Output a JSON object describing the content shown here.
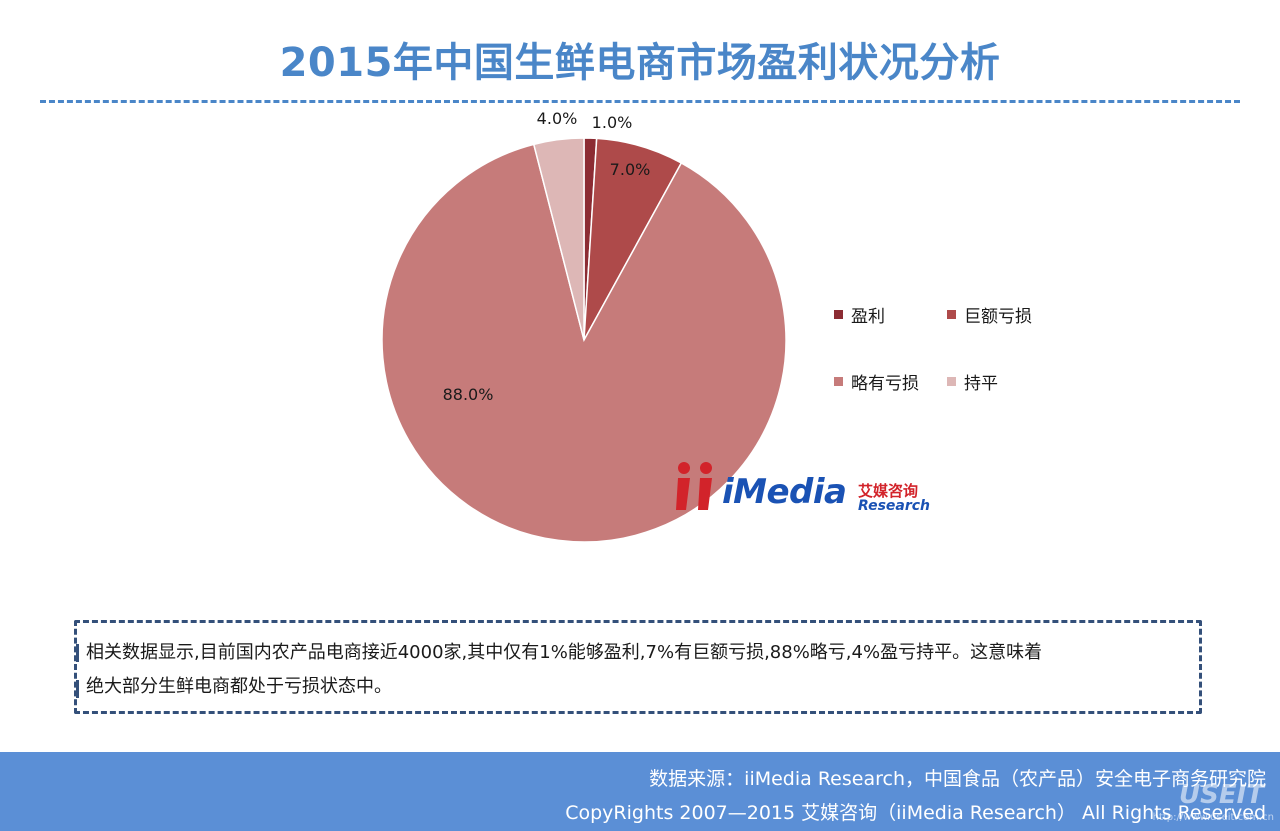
{
  "title": "2015年中国生鲜电商市场盈利状况分析",
  "chart_data": {
    "type": "pie",
    "title": "",
    "slices": [
      {
        "name": "盈利",
        "value": 1.0,
        "label": "1.0%",
        "color": "#8c2c33"
      },
      {
        "name": "巨额亏损",
        "value": 7.0,
        "label": "7.0%",
        "color": "#ae4a4a"
      },
      {
        "name": "略有亏损",
        "value": 88.0,
        "label": "88.0%",
        "color": "#c67b7a"
      },
      {
        "name": "持平",
        "value": 4.0,
        "label": "4.0%",
        "color": "#ddb7b6"
      }
    ],
    "legend_placement": "right"
  },
  "logo": {
    "media": "iMedia",
    "cn": "艾媒咨询",
    "en": "Research"
  },
  "note": {
    "line1": "相关数据显示,目前国内农产品电商接近4000家,其中仅有1%能够盈利,7%有巨额亏损,88%略亏,4%盈亏持平。这意味着",
    "line2": "绝大部分生鲜电商都处于亏损状态中。"
  },
  "footer": {
    "source": "数据来源：iiMedia Research，中国食品（农产品）安全电子商务研究院",
    "copyright": "CopyRights 2007—2015 艾媒咨询（iiMedia Research） All Rights Reserved"
  },
  "watermark": {
    "text": "USEIT",
    "url": "http://www.useit.com.cn"
  }
}
